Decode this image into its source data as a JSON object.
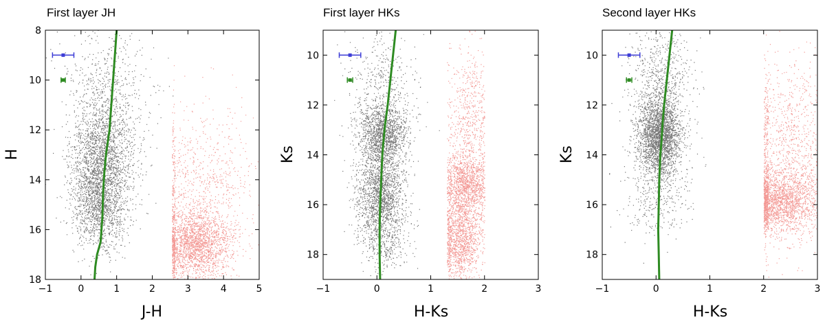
{
  "chart_data": [
    {
      "type": "scatter",
      "title": "First layer JH",
      "xlabel": "J-H",
      "ylabel": "H",
      "xlim": [
        -1,
        5
      ],
      "ylim": [
        18,
        8
      ],
      "y_inverted": true,
      "xticks": [
        -1,
        0,
        1,
        2,
        3,
        4,
        5
      ],
      "yticks": [
        8,
        10,
        12,
        14,
        16,
        18
      ],
      "series": [
        {
          "color": "#000000",
          "kind": "points",
          "clusters": [
            {
              "x": 0.55,
              "y": 13.5,
              "sx": 0.42,
              "sy": 1.3,
              "n": 2200
            },
            {
              "x": 0.5,
              "y": 15.3,
              "sx": 0.35,
              "sy": 0.8,
              "n": 700
            },
            {
              "x": 0.8,
              "y": 11.5,
              "sx": 0.6,
              "sy": 1.6,
              "n": 500
            },
            {
              "x": 0.8,
              "y": 9.5,
              "sx": 0.7,
              "sy": 1.2,
              "n": 200
            }
          ]
        },
        {
          "color": "#e8312a",
          "kind": "points",
          "clusters": [
            {
              "x": 3.2,
              "y": 16.6,
              "sx": 0.5,
              "sy": 0.7,
              "n": 2000
            },
            {
              "x": 3.4,
              "y": 14.5,
              "sx": 0.8,
              "sy": 1.7,
              "n": 900
            }
          ],
          "xmin": 2.55
        },
        {
          "color": "#2e8b22",
          "kind": "curve",
          "x": [
            1.0,
            0.95,
            0.9,
            0.85,
            0.8,
            0.75,
            0.7,
            0.65,
            0.62,
            0.6,
            0.55,
            0.45,
            0.4,
            0.38
          ],
          "y": [
            8.0,
            9.0,
            10.0,
            11.0,
            12.0,
            12.5,
            13.0,
            13.8,
            14.5,
            15.5,
            16.5,
            17.0,
            17.5,
            18.0
          ]
        }
      ],
      "error_bars": [
        {
          "x": -0.5,
          "y": 9.0,
          "xerr": 0.3,
          "color": "#3d3dd6"
        },
        {
          "x": -0.5,
          "y": 10.0,
          "xerr": 0.06,
          "color": "#2e8b22"
        }
      ]
    },
    {
      "type": "scatter",
      "title": "First layer HKs",
      "xlabel": "H-Ks",
      "ylabel": "Ks",
      "xlim": [
        -1,
        3
      ],
      "ylim": [
        19,
        9
      ],
      "y_inverted": true,
      "xticks": [
        -1,
        0,
        1,
        2,
        3
      ],
      "yticks": [
        10,
        12,
        14,
        16,
        18
      ],
      "series": [
        {
          "color": "#000000",
          "kind": "points",
          "clusters": [
            {
              "x": 0.1,
              "y": 13.2,
              "sx": 0.22,
              "sy": 0.6,
              "n": 1300
            },
            {
              "x": 0.05,
              "y": 15.6,
              "sx": 0.22,
              "sy": 0.9,
              "n": 1700
            },
            {
              "x": 0.1,
              "y": 11.5,
              "sx": 0.3,
              "sy": 1.3,
              "n": 500
            },
            {
              "x": 0.15,
              "y": 17.5,
              "sx": 0.25,
              "sy": 0.6,
              "n": 300
            }
          ]
        },
        {
          "color": "#e8312a",
          "kind": "points",
          "clusters": [
            {
              "x": 1.65,
              "y": 15.2,
              "sx": 0.2,
              "sy": 0.6,
              "n": 1200
            },
            {
              "x": 1.55,
              "y": 17.4,
              "sx": 0.2,
              "sy": 0.8,
              "n": 1300
            },
            {
              "x": 1.7,
              "y": 12.5,
              "sx": 0.2,
              "sy": 1.5,
              "n": 600
            }
          ],
          "xmin": 1.3,
          "xmax": 2.0
        },
        {
          "color": "#2e8b22",
          "kind": "curve",
          "x": [
            0.35,
            0.3,
            0.25,
            0.2,
            0.15,
            0.12,
            0.1,
            0.08,
            0.06,
            0.05,
            0.05,
            0.06
          ],
          "y": [
            9.0,
            10.0,
            11.0,
            12.0,
            12.8,
            13.5,
            14.0,
            15.0,
            16.0,
            17.0,
            18.0,
            19.0
          ]
        }
      ],
      "error_bars": [
        {
          "x": -0.5,
          "y": 10.0,
          "xerr": 0.2,
          "color": "#3d3dd6"
        },
        {
          "x": -0.5,
          "y": 11.0,
          "xerr": 0.05,
          "color": "#2e8b22"
        }
      ]
    },
    {
      "type": "scatter",
      "title": "Second layer HKs",
      "xlabel": "H-Ks",
      "ylabel": "Ks",
      "xlim": [
        -1,
        3
      ],
      "ylim": [
        19,
        9
      ],
      "y_inverted": true,
      "xticks": [
        -1,
        0,
        1,
        2,
        3
      ],
      "yticks": [
        10,
        12,
        14,
        16,
        18
      ],
      "series": [
        {
          "color": "#000000",
          "kind": "points",
          "clusters": [
            {
              "x": 0.05,
              "y": 13.2,
              "sx": 0.2,
              "sy": 0.8,
              "n": 2400
            },
            {
              "x": 0.1,
              "y": 11.0,
              "sx": 0.3,
              "sy": 1.2,
              "n": 600
            },
            {
              "x": 0.0,
              "y": 15.5,
              "sx": 0.3,
              "sy": 1.0,
              "n": 400
            }
          ]
        },
        {
          "color": "#e8312a",
          "kind": "points",
          "clusters": [
            {
              "x": 2.3,
              "y": 15.9,
              "sx": 0.35,
              "sy": 0.6,
              "n": 1800
            },
            {
              "x": 2.5,
              "y": 14.0,
              "sx": 0.5,
              "sy": 1.8,
              "n": 1300
            }
          ],
          "xmin": 2.0
        },
        {
          "color": "#2e8b22",
          "kind": "curve",
          "x": [
            0.3,
            0.25,
            0.2,
            0.15,
            0.12,
            0.1,
            0.08,
            0.06,
            0.05,
            0.04,
            0.05,
            0.06
          ],
          "y": [
            9.0,
            10.0,
            11.0,
            12.0,
            12.8,
            13.5,
            14.0,
            15.0,
            16.0,
            17.0,
            18.0,
            19.0
          ]
        }
      ],
      "error_bars": [
        {
          "x": -0.5,
          "y": 10.0,
          "xerr": 0.2,
          "color": "#3d3dd6"
        },
        {
          "x": -0.5,
          "y": 11.0,
          "xerr": 0.05,
          "color": "#2e8b22"
        }
      ]
    }
  ]
}
